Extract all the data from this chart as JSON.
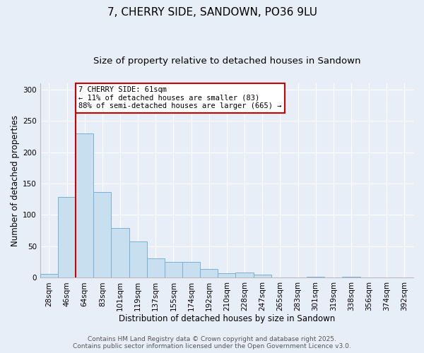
{
  "title": "7, CHERRY SIDE, SANDOWN, PO36 9LU",
  "subtitle": "Size of property relative to detached houses in Sandown",
  "xlabel": "Distribution of detached houses by size in Sandown",
  "ylabel": "Number of detached properties",
  "bin_labels": [
    "28sqm",
    "46sqm",
    "64sqm",
    "83sqm",
    "101sqm",
    "119sqm",
    "137sqm",
    "155sqm",
    "174sqm",
    "192sqm",
    "210sqm",
    "228sqm",
    "247sqm",
    "265sqm",
    "283sqm",
    "301sqm",
    "319sqm",
    "338sqm",
    "356sqm",
    "374sqm",
    "392sqm"
  ],
  "bin_values": [
    6,
    129,
    230,
    137,
    79,
    58,
    31,
    25,
    25,
    14,
    7,
    8,
    5,
    0,
    0,
    2,
    0,
    1,
    0,
    0,
    0
  ],
  "bar_color": "#c8dff0",
  "bar_edge_color": "#7ab0d4",
  "vline_x_index": 2,
  "vline_color": "#cc0000",
  "ylim": [
    0,
    310
  ],
  "yticks": [
    0,
    50,
    100,
    150,
    200,
    250,
    300
  ],
  "annotation_text": "7 CHERRY SIDE: 61sqm\n← 11% of detached houses are smaller (83)\n88% of semi-detached houses are larger (665) →",
  "annotation_box_facecolor": "#ffffff",
  "annotation_box_edgecolor": "#cc0000",
  "footer_line1": "Contains HM Land Registry data © Crown copyright and database right 2025.",
  "footer_line2": "Contains public sector information licensed under the Open Government Licence v3.0.",
  "bg_color": "#e8eef8",
  "grid_color": "#ffffff",
  "title_fontsize": 11,
  "subtitle_fontsize": 9.5,
  "axis_label_fontsize": 8.5,
  "tick_fontsize": 7.5,
  "annotation_fontsize": 7.5,
  "footer_fontsize": 6.5
}
